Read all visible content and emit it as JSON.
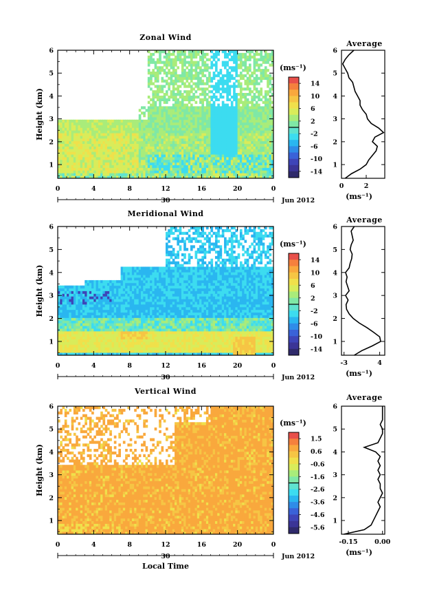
{
  "chart_data": [
    {
      "type": "heatmap",
      "title": "Zonal Wind",
      "ylabel": "Height (km)",
      "xlabel": "",
      "x_ticks": [
        "0",
        "4",
        "8",
        "12",
        "16",
        "20",
        "0"
      ],
      "y_ticks": [
        "1",
        "2",
        "3",
        "4",
        "5",
        "6"
      ],
      "xlim": [
        0,
        24
      ],
      "ylim": [
        0.4,
        6.0
      ],
      "date_label": "30",
      "month_label": "Jun 2012",
      "colorbar": {
        "unit": "(ms⁻¹)",
        "tick_labels": [
          "14",
          "10",
          "6",
          "2",
          "-2",
          "-6",
          "-10",
          "-14"
        ],
        "range": [
          -16,
          16
        ],
        "colors": [
          "#e8504a",
          "#f5803d",
          "#f9a83d",
          "#f6c544",
          "#f0e04b",
          "#d9ec5a",
          "#a9ec7a",
          "#7fe8a6",
          "#5fe3cf",
          "#3cdcf0",
          "#2ab6f0",
          "#2f8ce8",
          "#3a62d8",
          "#3e45b8",
          "#3b3596",
          "#2f2a6b"
        ]
      },
      "profile_title": "Average",
      "profile_xlabel": "(ms⁻¹)",
      "profile_x_ticks": [
        "0",
        "2"
      ],
      "profile_xlim": [
        0,
        3.5
      ],
      "profile": {
        "height": [
          0.4,
          0.6,
          0.8,
          1.0,
          1.2,
          1.4,
          1.6,
          1.8,
          2.0,
          2.2,
          2.4,
          2.6,
          2.8,
          3.0,
          3.2,
          3.4,
          3.6,
          3.8,
          4.0,
          4.2,
          4.4,
          4.6,
          4.8,
          5.0,
          5.2,
          5.4,
          5.6,
          5.8,
          6.0
        ],
        "value": [
          0.3,
          0.8,
          1.5,
          2.0,
          2.2,
          2.5,
          2.8,
          2.9,
          2.5,
          2.7,
          3.4,
          3.0,
          2.4,
          2.1,
          2.0,
          1.7,
          1.5,
          1.5,
          1.3,
          1.1,
          1.0,
          0.9,
          0.6,
          0.5,
          0.3,
          0.1,
          0.3,
          0.6,
          1.0
        ]
      }
    },
    {
      "type": "heatmap",
      "title": "Meridional Wind",
      "ylabel": "Height (km)",
      "xlabel": "",
      "x_ticks": [
        "0",
        "4",
        "8",
        "12",
        "16",
        "20",
        "0"
      ],
      "y_ticks": [
        "1",
        "2",
        "3",
        "4",
        "5",
        "6"
      ],
      "xlim": [
        0,
        24
      ],
      "ylim": [
        0.4,
        6.0
      ],
      "date_label": "30",
      "month_label": "Jun 2012",
      "colorbar": {
        "unit": "(ms⁻¹)",
        "tick_labels": [
          "14",
          "10",
          "6",
          "2",
          "-2",
          "-6",
          "-10",
          "-14"
        ],
        "range": [
          -16,
          16
        ],
        "colors": [
          "#e8504a",
          "#f5803d",
          "#f9a83d",
          "#f6c544",
          "#f0e04b",
          "#d9ec5a",
          "#a9ec7a",
          "#7fe8a6",
          "#5fe3cf",
          "#3cdcf0",
          "#2ab6f0",
          "#2f8ce8",
          "#3a62d8",
          "#3e45b8",
          "#3b3596",
          "#2f2a6b"
        ]
      },
      "profile_title": "Average",
      "profile_xlabel": "(ms⁻¹)",
      "profile_x_ticks": [
        "-3",
        "4"
      ],
      "profile_xlim": [
        -3.5,
        5
      ],
      "profile": {
        "height": [
          0.4,
          0.6,
          0.8,
          1.0,
          1.2,
          1.4,
          1.6,
          1.8,
          2.0,
          2.2,
          2.4,
          2.6,
          2.8,
          3.0,
          3.2,
          3.4,
          3.6,
          3.8,
          4.0,
          4.2,
          4.4,
          4.6,
          4.8,
          5.0,
          5.2,
          5.4,
          5.6,
          5.8,
          6.0
        ],
        "value": [
          -1.0,
          0.5,
          2.5,
          4.2,
          4.0,
          2.8,
          1.5,
          0.0,
          -1.2,
          -2.0,
          -2.5,
          -2.6,
          -2.2,
          -2.7,
          -2.0,
          -2.3,
          -2.6,
          -2.4,
          -2.7,
          -2.0,
          -1.8,
          -1.5,
          -1.4,
          -1.8,
          -1.6,
          -1.2,
          -1.4,
          -1.6,
          -1.0
        ]
      }
    },
    {
      "type": "heatmap",
      "title": "Vertical Wind",
      "ylabel": "Height (km)",
      "xlabel": "Local Time",
      "x_ticks": [
        "0",
        "4",
        "8",
        "12",
        "16",
        "20",
        "0"
      ],
      "y_ticks": [
        "1",
        "2",
        "3",
        "4",
        "5",
        "6"
      ],
      "xlim": [
        0,
        24
      ],
      "ylim": [
        0.4,
        6.0
      ],
      "date_label": "30",
      "month_label": "Jun 2012",
      "colorbar": {
        "unit": "(ms⁻¹)",
        "tick_labels": [
          "1.5",
          "0.6",
          "-0.6",
          "-1.6",
          "-2.6",
          "-3.6",
          "-4.6",
          "-5.6"
        ],
        "range": [
          -6.0,
          2.0
        ],
        "colors": [
          "#e8504a",
          "#f5803d",
          "#f9a83d",
          "#f6c544",
          "#f0e04b",
          "#d9ec5a",
          "#a9ec7a",
          "#7fe8a6",
          "#5fe3cf",
          "#3cdcf0",
          "#2ab6f0",
          "#2f8ce8",
          "#3a62d8",
          "#3e45b8",
          "#3b3596",
          "#2f2a6b"
        ]
      },
      "profile_title": "Average",
      "profile_xlabel": "(ms⁻¹)",
      "profile_x_ticks": [
        "-0.15",
        "0.00"
      ],
      "profile_xlim": [
        -0.18,
        0.01
      ],
      "profile": {
        "height": [
          0.4,
          0.6,
          0.8,
          1.0,
          1.2,
          1.4,
          1.6,
          1.8,
          2.0,
          2.2,
          2.4,
          2.6,
          2.8,
          3.0,
          3.2,
          3.4,
          3.6,
          3.8,
          4.0,
          4.2,
          4.4,
          4.6,
          4.8,
          5.0,
          5.2,
          5.4,
          5.6,
          5.8,
          6.0
        ],
        "value": [
          -0.17,
          -0.08,
          -0.05,
          -0.04,
          -0.03,
          -0.02,
          -0.01,
          -0.02,
          -0.01,
          0.0,
          -0.01,
          -0.01,
          -0.02,
          -0.01,
          -0.02,
          -0.01,
          -0.02,
          -0.01,
          -0.03,
          -0.08,
          -0.02,
          -0.01,
          0.0,
          0.0,
          -0.01,
          0.0,
          0.0,
          0.0,
          0.0
        ]
      }
    }
  ]
}
